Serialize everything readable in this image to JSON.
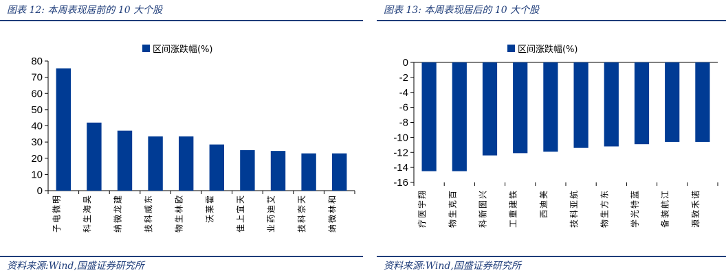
{
  "left": {
    "figure_title": "图表 12:  本周表现居前的 10 大个股",
    "source": "资料来源:Wind,国盛证券研究所"
  },
  "right": {
    "figure_title": "图表 13:  本周表现居后的 10 大个股",
    "source": "资料来源:Wind,国盛证券研究所"
  },
  "colors": {
    "accent": "#1f3d7a",
    "bar": "#003b94"
  },
  "chart_data": [
    {
      "type": "bar",
      "title": "",
      "legend": {
        "entries": [
          "区间涨跌幅(%)"
        ],
        "placement": "top-center"
      },
      "categories": [
        "明微电子",
        "昊海生科",
        "建龙微纳",
        "东威科技",
        "欧林生物",
        "霍莱沃",
        "天宜上佳",
        "艾迪药业",
        "天奈科技",
        "和林微纳"
      ],
      "series": [
        {
          "name": "区间涨跌幅(%)",
          "values": [
            75.5,
            42,
            37,
            33.5,
            33.5,
            28.5,
            25,
            24.5,
            23,
            23
          ]
        }
      ],
      "ylim": [
        0,
        80
      ],
      "yticks": [
        0,
        10,
        20,
        30,
        40,
        50,
        60,
        70,
        80
      ],
      "grid": false
    },
    {
      "type": "bar",
      "title": "",
      "legend": {
        "entries": [
          "区间涨跌幅(%)"
        ],
        "placement": "top-center"
      },
      "categories": [
        "翔宇医疗",
        "百克生物",
        "兴图新科",
        "铁建重工",
        "美迪西",
        "航亚科技",
        "东方生物",
        "蓝特光学",
        "江航装备",
        "诺禾致源"
      ],
      "series": [
        {
          "name": "区间涨跌幅(%)",
          "values": [
            -14.5,
            -14.5,
            -12.4,
            -12.1,
            -11.9,
            -11.4,
            -11.2,
            -10.9,
            -10.6,
            -10.6
          ]
        }
      ],
      "ylim": [
        -16,
        0
      ],
      "yticks": [
        -16,
        -14,
        -12,
        -10,
        -8,
        -6,
        -4,
        -2,
        0
      ],
      "grid": false
    }
  ]
}
